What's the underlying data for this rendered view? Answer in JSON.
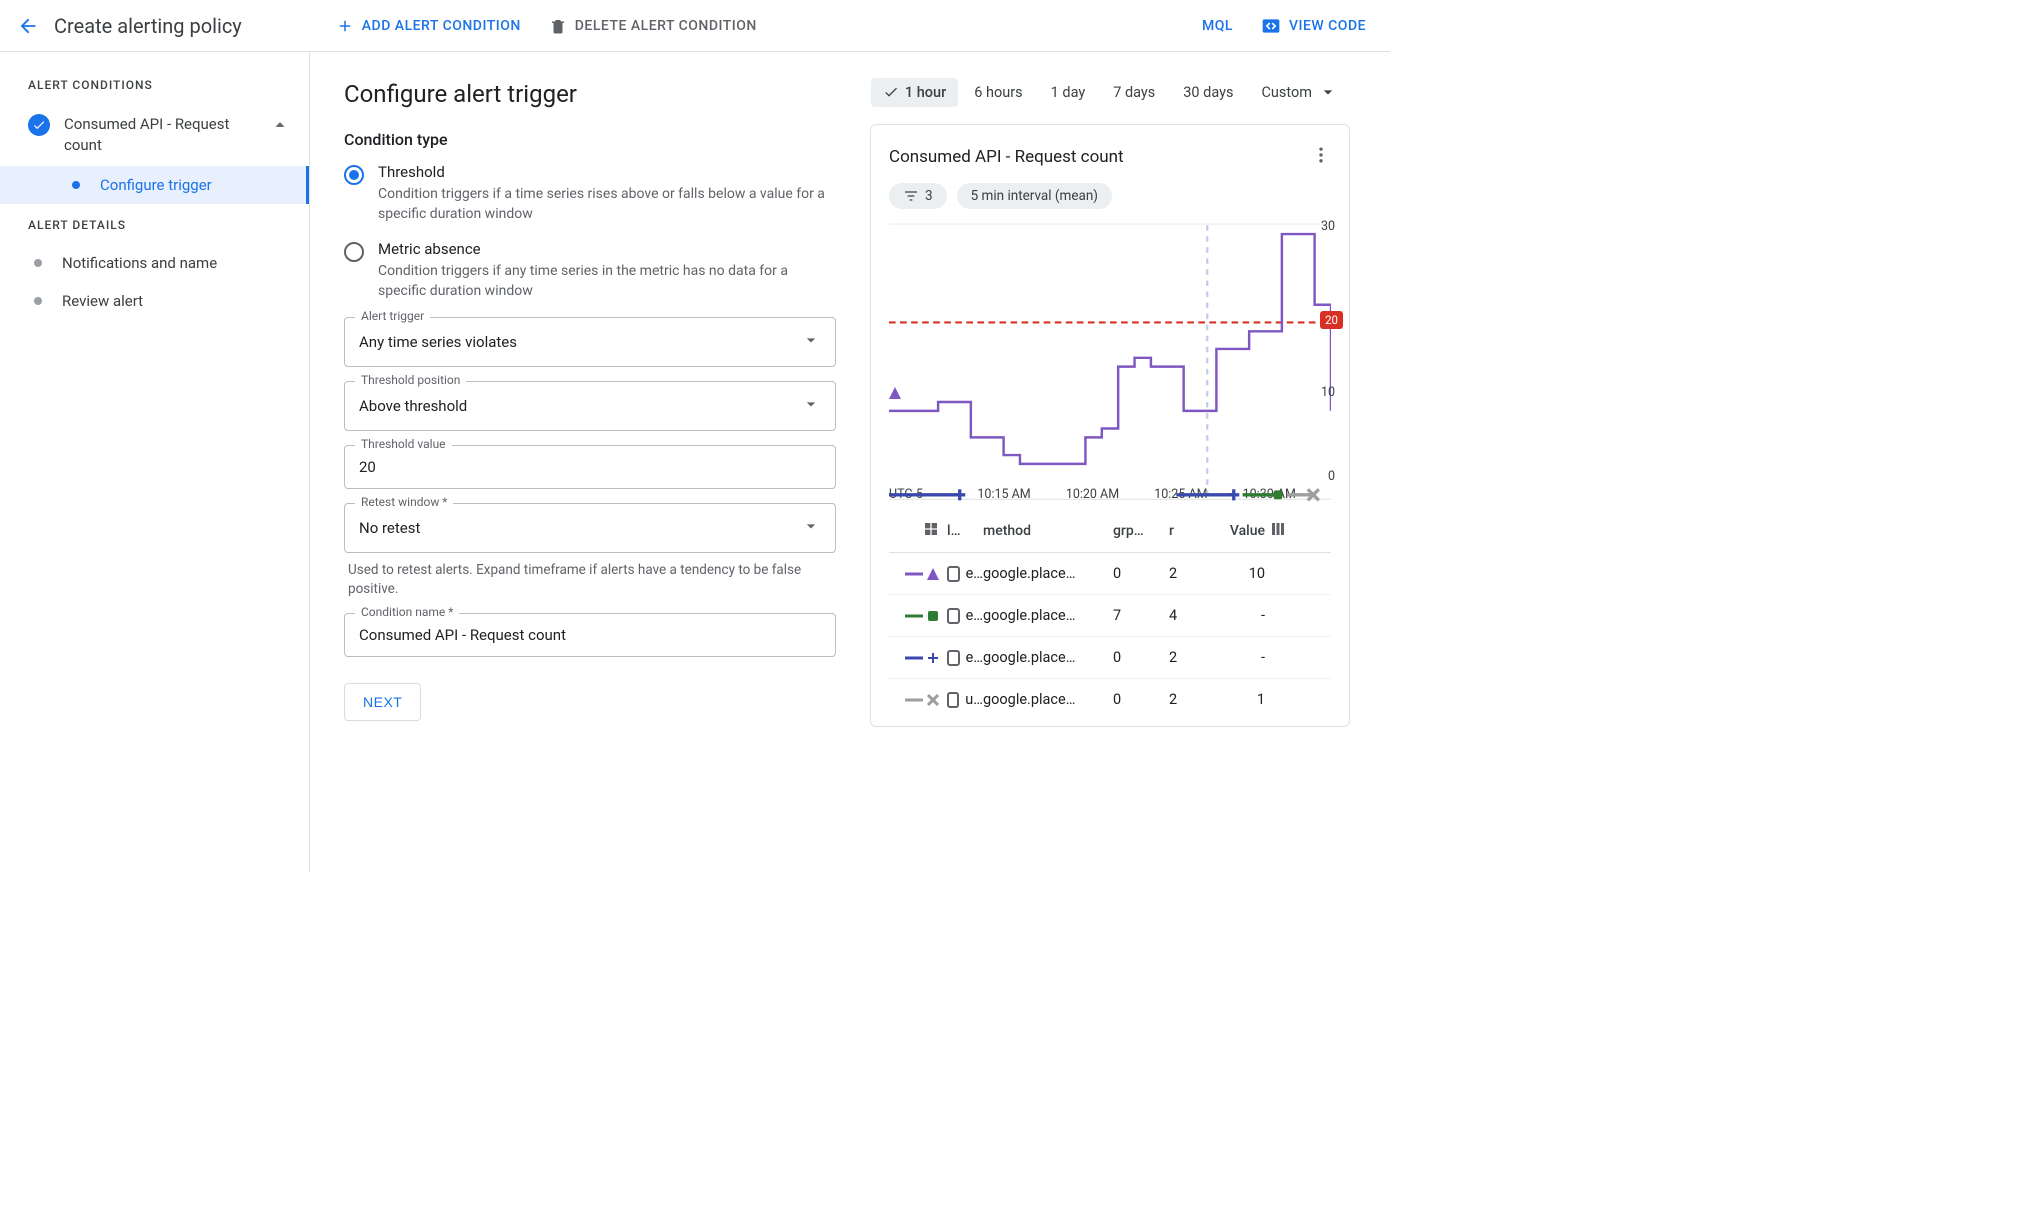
{
  "topbar": {
    "title": "Create alerting policy",
    "add_condition_label": "ADD ALERT CONDITION",
    "delete_condition_label": "DELETE ALERT CONDITION",
    "mql_label": "MQL",
    "view_code_label": "VIEW CODE"
  },
  "sidebar": {
    "section_conditions_label": "ALERT CONDITIONS",
    "condition_name": "Consumed API - Request count",
    "configure_trigger_label": "Configure trigger",
    "section_details_label": "ALERT DETAILS",
    "notifications_label": "Notifications and name",
    "review_label": "Review alert"
  },
  "center": {
    "heading": "Configure alert trigger",
    "condition_type_label": "Condition type",
    "radio_threshold_title": "Threshold",
    "radio_threshold_desc": "Condition triggers if a time series rises above or falls below a value for a specific duration window",
    "radio_absence_title": "Metric absence",
    "radio_absence_desc": "Condition triggers if any time series in the metric has no data for a specific duration window",
    "alert_trigger_label": "Alert trigger",
    "alert_trigger_value": "Any time series violates",
    "threshold_position_label": "Threshold position",
    "threshold_position_value": "Above threshold",
    "threshold_value_label": "Threshold value",
    "threshold_value_value": "20",
    "retest_label": "Retest window *",
    "retest_value": "No retest",
    "retest_helper": "Used to retest alerts. Expand timeframe if alerts have a tendency to be false positive.",
    "condition_name_label": "Condition name *",
    "condition_name_value": "Consumed API - Request count",
    "next_label": "NEXT"
  },
  "timerange": {
    "options": [
      "1 hour",
      "6 hours",
      "1 day",
      "7 days",
      "30 days"
    ],
    "custom_label": "Custom",
    "active_index": 0
  },
  "chart_card": {
    "title": "Consumed API - Request count",
    "filter_count": "3",
    "interval_chip": "5 min interval (mean)",
    "threshold_value": 20,
    "threshold_badge": "20",
    "yaxis": {
      "ticks": [
        0,
        10,
        20,
        30
      ],
      "ymax": 30
    },
    "xaxis": {
      "tz": "UTC-5",
      "ticks": [
        "10:15 AM",
        "10:20 AM",
        "10:25 AM",
        "10:30 AM"
      ]
    },
    "colors": {
      "purple": "#7e57c2",
      "blue": "#3949ab",
      "green": "#2e7d32",
      "gray": "#9e9e9e",
      "threshold": "#d93025",
      "vline": "#c5cae9"
    },
    "series": {
      "purple_step_values": [
        10,
        10,
        10,
        11,
        11,
        7,
        7,
        5,
        4,
        4,
        4,
        4,
        7,
        8,
        15,
        16,
        15,
        15,
        10,
        10,
        17,
        17,
        19,
        19,
        30,
        30,
        22,
        10
      ],
      "blue_segments": [
        [
          0,
          0.16,
          0.5
        ],
        [
          0.65,
          0.78,
          0.5
        ]
      ],
      "green_segment": [
        0.8,
        0.88,
        0.5
      ],
      "gray_segment": [
        0.9,
        0.96,
        0.5
      ]
    }
  },
  "legend_table": {
    "headers": {
      "col1": "l…",
      "method": "method",
      "grp": "grp…",
      "r": "r",
      "value": "Value"
    },
    "rows": [
      {
        "marker_color": "#7e57c2",
        "marker_shape": "triangle",
        "l": "e…",
        "method": "google.place…",
        "grp": "0",
        "r": "2",
        "value": "10"
      },
      {
        "marker_color": "#2e7d32",
        "marker_shape": "square",
        "l": "e…",
        "method": "google.place…",
        "grp": "7",
        "r": "4",
        "value": "-"
      },
      {
        "marker_color": "#3949ab",
        "marker_shape": "plus",
        "l": "e…",
        "method": "google.place…",
        "grp": "0",
        "r": "2",
        "value": "-"
      },
      {
        "marker_color": "#9e9e9e",
        "marker_shape": "x",
        "l": "u…",
        "method": "google.place…",
        "grp": "0",
        "r": "2",
        "value": "1"
      }
    ]
  }
}
